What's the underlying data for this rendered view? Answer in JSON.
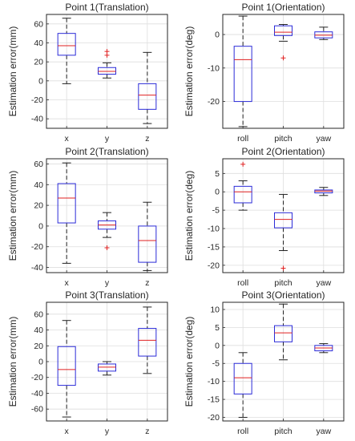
{
  "chart_data": [
    {
      "type": "box",
      "title": "Point 1(Translation)",
      "ylabel": "Estimation error(mm)",
      "categories": [
        "x",
        "y",
        "z"
      ],
      "ylim": [
        -50,
        70
      ],
      "yticks": [
        -40,
        -20,
        0,
        20,
        40,
        60
      ],
      "grid": true,
      "boxes": [
        {
          "min": -3,
          "q1": 27,
          "median": 37,
          "q3": 50,
          "max": 66,
          "outliers": []
        },
        {
          "min": 3,
          "q1": 7,
          "median": 10,
          "q3": 14,
          "max": 19,
          "outliers": [
            27,
            31
          ]
        },
        {
          "min": -45,
          "q1": -30,
          "median": -15,
          "q3": -3,
          "max": 30,
          "outliers": []
        }
      ]
    },
    {
      "type": "box",
      "title": "Point 1(Orientation)",
      "ylabel": "Estimation error(deg)",
      "categories": [
        "roll",
        "pitch",
        "yaw"
      ],
      "ylim": [
        -28,
        6
      ],
      "yticks": [
        -20,
        -10,
        0
      ],
      "grid": true,
      "boxes": [
        {
          "min": -27.5,
          "q1": -20,
          "median": -7.5,
          "q3": -3.5,
          "max": 5.5,
          "outliers": []
        },
        {
          "min": -2,
          "q1": -0.3,
          "median": 0.7,
          "q3": 2.6,
          "max": 3,
          "outliers": [
            -7
          ]
        },
        {
          "min": -1.5,
          "q1": -1,
          "median": -0.2,
          "q3": 0.8,
          "max": 2.2,
          "outliers": []
        }
      ]
    },
    {
      "type": "box",
      "title": "Point 2(Translation)",
      "ylabel": "Estimation error(mm)",
      "categories": [
        "x",
        "y",
        "z"
      ],
      "ylim": [
        -45,
        65
      ],
      "yticks": [
        -40,
        -20,
        0,
        20,
        40,
        60
      ],
      "grid": true,
      "boxes": [
        {
          "min": -36,
          "q1": 3,
          "median": 27,
          "q3": 41,
          "max": 61,
          "outliers": []
        },
        {
          "min": -11,
          "q1": -3,
          "median": 1,
          "q3": 5,
          "max": 13,
          "outliers": [
            -21
          ]
        },
        {
          "min": -43,
          "q1": -35,
          "median": -14,
          "q3": 0,
          "max": 23,
          "outliers": []
        }
      ]
    },
    {
      "type": "box",
      "title": "Point 2(Orientation)",
      "ylabel": "Estimation error(deg)",
      "categories": [
        "roll",
        "pitch",
        "yaw"
      ],
      "ylim": [
        -22,
        9
      ],
      "yticks": [
        -20,
        -15,
        -10,
        -5,
        0,
        5
      ],
      "grid": true,
      "boxes": [
        {
          "min": -5,
          "q1": -3,
          "median": 0,
          "q3": 1.5,
          "max": 3,
          "outliers": [
            7.5
          ]
        },
        {
          "min": -16,
          "q1": -9.8,
          "median": -7.5,
          "q3": -5.7,
          "max": -0.7,
          "outliers": [
            -20.8
          ]
        },
        {
          "min": -1,
          "q1": -0.3,
          "median": 0.2,
          "q3": 0.5,
          "max": 1.2,
          "outliers": []
        }
      ]
    },
    {
      "type": "box",
      "title": "Point 3(Translation)",
      "ylabel": "Estimation error(mm)",
      "categories": [
        "x",
        "y",
        "z"
      ],
      "ylim": [
        -75,
        75
      ],
      "yticks": [
        -60,
        -40,
        -20,
        0,
        20,
        40,
        60
      ],
      "grid": true,
      "boxes": [
        {
          "min": -70,
          "q1": -30,
          "median": -10,
          "q3": 19,
          "max": 52,
          "outliers": []
        },
        {
          "min": -17,
          "q1": -12,
          "median": -7,
          "q3": -3,
          "max": 0,
          "outliers": []
        },
        {
          "min": -15,
          "q1": 7,
          "median": 27,
          "q3": 42,
          "max": 69,
          "outliers": []
        }
      ]
    },
    {
      "type": "box",
      "title": "Point 3(Orientation)",
      "ylabel": "Estimation error(deg)",
      "categories": [
        "roll",
        "pitch",
        "yaw"
      ],
      "ylim": [
        -21,
        12
      ],
      "yticks": [
        -20,
        -15,
        -10,
        -5,
        0,
        5,
        10
      ],
      "grid": true,
      "boxes": [
        {
          "min": -20,
          "q1": -13.5,
          "median": -9,
          "q3": -5,
          "max": -2,
          "outliers": []
        },
        {
          "min": -4,
          "q1": 1,
          "median": 3.5,
          "q3": 5.5,
          "max": 11.5,
          "outliers": []
        },
        {
          "min": -2,
          "q1": -1.5,
          "median": -0.7,
          "q3": 0,
          "max": 0.5,
          "outliers": []
        }
      ]
    }
  ]
}
